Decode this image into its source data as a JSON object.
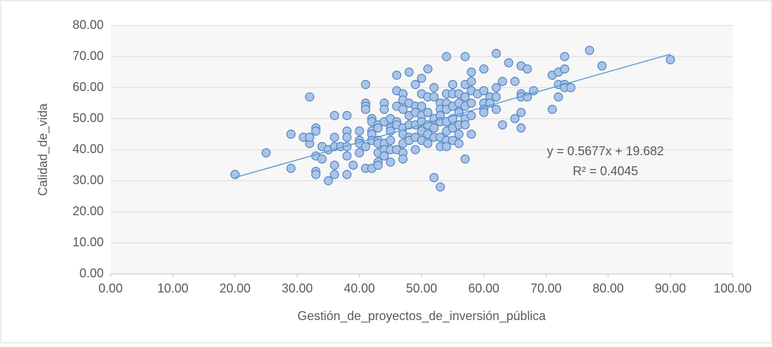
{
  "chart_data": {
    "type": "scatter",
    "x_label": "Gestión_de_proyectos_de_inversión_pública",
    "y_label": "Calidad_de_vida",
    "xlim": [
      0,
      100
    ],
    "ylim": [
      0,
      80
    ],
    "xticks": [
      {
        "value": 0,
        "label": "0.00"
      },
      {
        "value": 10,
        "label": "10.00"
      },
      {
        "value": 20,
        "label": "20.00"
      },
      {
        "value": 30,
        "label": "30.00"
      },
      {
        "value": 40,
        "label": "40.00"
      },
      {
        "value": 50,
        "label": "50.00"
      },
      {
        "value": 60,
        "label": "60.00"
      },
      {
        "value": 70,
        "label": "70.00"
      },
      {
        "value": 80,
        "label": "80.00"
      },
      {
        "value": 90,
        "label": "90.00"
      },
      {
        "value": 100,
        "label": "100.00"
      }
    ],
    "yticks": [
      {
        "value": 0,
        "label": "0.00"
      },
      {
        "value": 10,
        "label": "10.00"
      },
      {
        "value": 20,
        "label": "20.00"
      },
      {
        "value": 30,
        "label": "30.00"
      },
      {
        "value": 40,
        "label": "40.00"
      },
      {
        "value": 50,
        "label": "50.00"
      },
      {
        "value": 60,
        "label": "60.00"
      },
      {
        "value": 70,
        "label": "70.00"
      },
      {
        "value": 80,
        "label": "80.00"
      }
    ],
    "grid": true,
    "color": "#a9c4e8",
    "series": [
      {
        "color": "#a9c4e8",
        "x": [
          20,
          25,
          29,
          29,
          31,
          32,
          32,
          32,
          33,
          33,
          33,
          33,
          33,
          34,
          34,
          35,
          35,
          36,
          36,
          36,
          36,
          36,
          37,
          38,
          38,
          38,
          38,
          38,
          38,
          39,
          40,
          40,
          40,
          40,
          41,
          41,
          41,
          41,
          41,
          41,
          42,
          42,
          42,
          42,
          42,
          42,
          43,
          43,
          43,
          43,
          43,
          43,
          43,
          44,
          44,
          44,
          44,
          44,
          44,
          45,
          45,
          45,
          45,
          45,
          45,
          46,
          46,
          46,
          46,
          46,
          46,
          47,
          47,
          47,
          47,
          47,
          47,
          47,
          47,
          48,
          48,
          48,
          48,
          48,
          48,
          49,
          49,
          49,
          49,
          49,
          49,
          50,
          50,
          50,
          50,
          50,
          50,
          50,
          51,
          51,
          51,
          51,
          51,
          51,
          52,
          52,
          52,
          52,
          52,
          52,
          53,
          53,
          53,
          53,
          53,
          53,
          53,
          54,
          54,
          54,
          54,
          54,
          54,
          54,
          54,
          55,
          55,
          55,
          55,
          55,
          55,
          56,
          56,
          56,
          56,
          56,
          56,
          57,
          57,
          57,
          57,
          57,
          57,
          57,
          58,
          58,
          58,
          58,
          58,
          58,
          59,
          60,
          60,
          60,
          60,
          60,
          61,
          61,
          62,
          62,
          62,
          62,
          63,
          63,
          64,
          65,
          65,
          66,
          66,
          66,
          66,
          66,
          67,
          67,
          68,
          71,
          71,
          72,
          72,
          72,
          73,
          73,
          73,
          73,
          74,
          77,
          79,
          90
        ],
        "values": [
          32,
          39,
          45,
          34,
          44,
          57,
          42,
          44,
          47,
          46,
          38,
          33,
          32,
          41,
          37,
          30,
          40,
          51,
          44,
          41,
          35,
          32,
          41,
          51,
          46,
          44,
          41,
          38,
          32,
          35,
          46,
          43,
          42,
          39,
          61,
          55,
          54,
          53,
          41,
          34,
          50,
          49,
          46,
          45,
          43,
          34,
          48,
          47,
          43,
          42,
          39,
          36,
          35,
          55,
          53,
          49,
          42,
          40,
          38,
          50,
          47,
          46,
          43,
          40,
          36,
          64,
          59,
          54,
          49,
          48,
          40,
          58,
          56,
          53,
          47,
          45,
          42,
          39,
          37,
          65,
          55,
          51,
          48,
          44,
          43,
          61,
          54,
          52,
          48,
          44,
          40,
          63,
          58,
          54,
          51,
          49,
          46,
          43,
          66,
          57,
          52,
          48,
          45,
          42,
          60,
          57,
          50,
          47,
          44,
          31,
          55,
          53,
          51,
          49,
          44,
          41,
          28,
          70,
          58,
          55,
          53,
          49,
          46,
          43,
          41,
          61,
          58,
          54,
          50,
          47,
          43,
          58,
          55,
          52,
          48,
          45,
          42,
          70,
          61,
          57,
          54,
          50,
          48,
          37,
          65,
          62,
          59,
          55,
          51,
          45,
          58,
          66,
          59,
          55,
          53,
          52,
          57,
          55,
          71,
          60,
          57,
          53,
          62,
          48,
          68,
          62,
          50,
          67,
          58,
          57,
          52,
          47,
          66,
          57,
          59,
          64,
          53,
          65,
          61,
          57,
          70,
          66,
          61,
          60,
          60,
          72,
          67,
          69
        ]
      }
    ],
    "trendline": {
      "label": "y = 0.5677x + 19.682",
      "r2_label": "R² = 0.4045",
      "color": "#5b9bd5",
      "x": [
        20,
        90
      ],
      "values": [
        31.04,
        70.77
      ]
    }
  }
}
